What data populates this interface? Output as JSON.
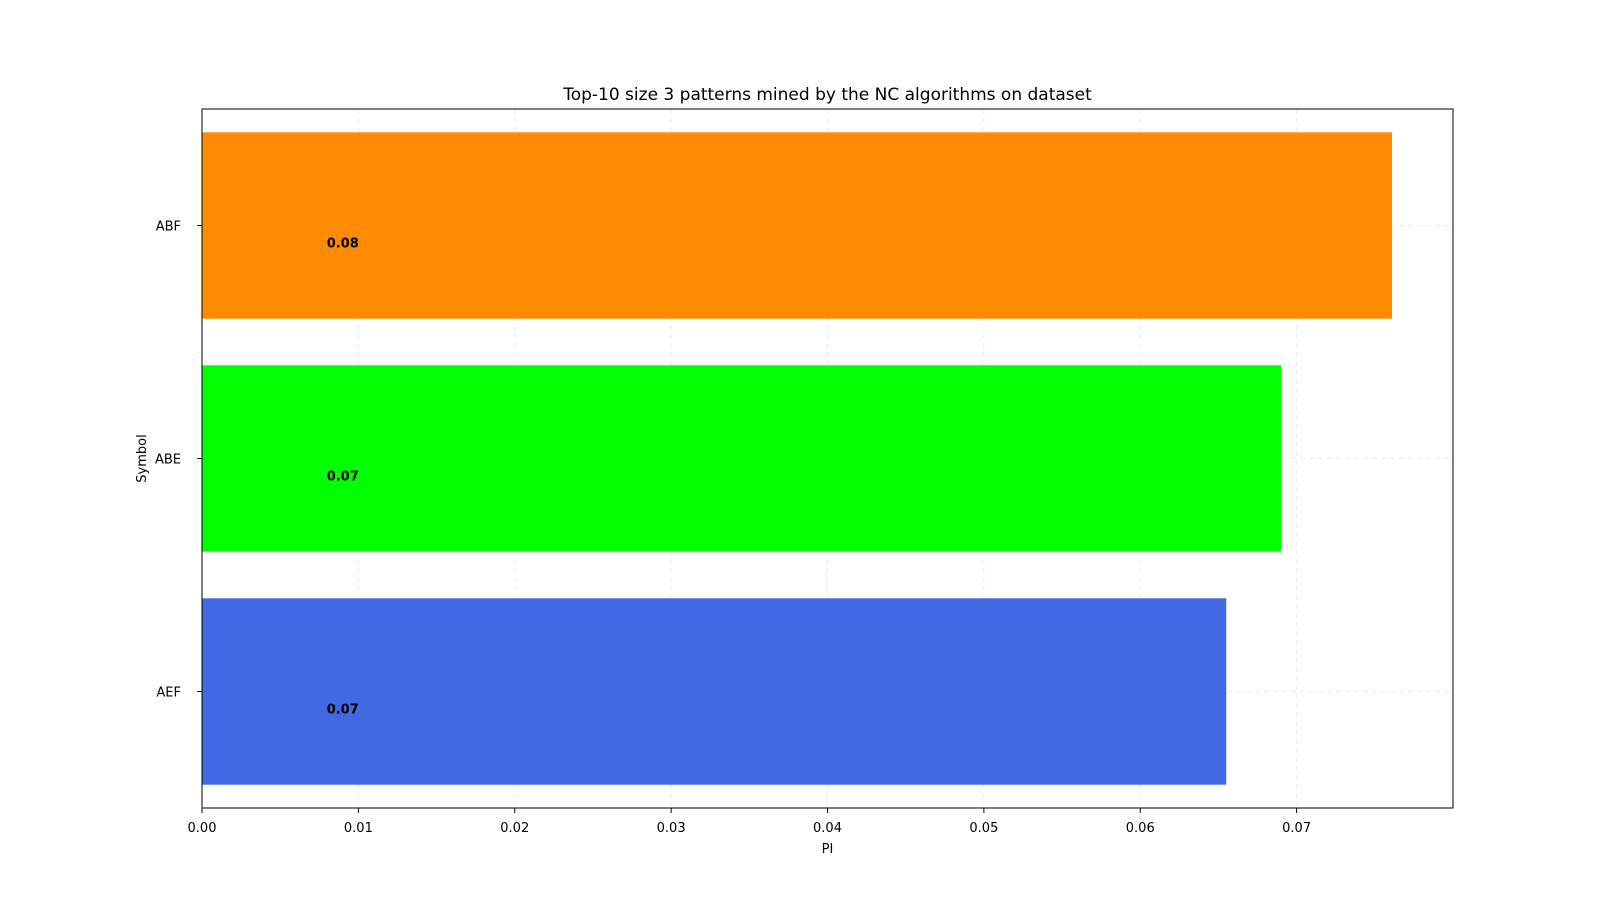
{
  "chart_data": {
    "type": "bar",
    "orientation": "horizontal",
    "title": "Top-10 size 3 patterns mined by the NC algorithms on dataset",
    "xlabel": "PI",
    "ylabel": "Symbol",
    "xlim": [
      0,
      0.08
    ],
    "xticks": [
      0.0,
      0.01,
      0.02,
      0.03,
      0.04,
      0.05,
      0.06,
      0.07
    ],
    "xtick_labels": [
      "0.00",
      "0.01",
      "0.02",
      "0.03",
      "0.04",
      "0.05",
      "0.06",
      "0.07"
    ],
    "grid": true,
    "categories": [
      "ABF",
      "ABE",
      "AEF"
    ],
    "values": [
      0.0761,
      0.069,
      0.0655
    ],
    "value_labels": [
      "0.08",
      "0.07",
      "0.07"
    ],
    "label_x": 0.009,
    "colors": [
      "#ff8c00",
      "#00ff00",
      "#4169e1"
    ]
  }
}
